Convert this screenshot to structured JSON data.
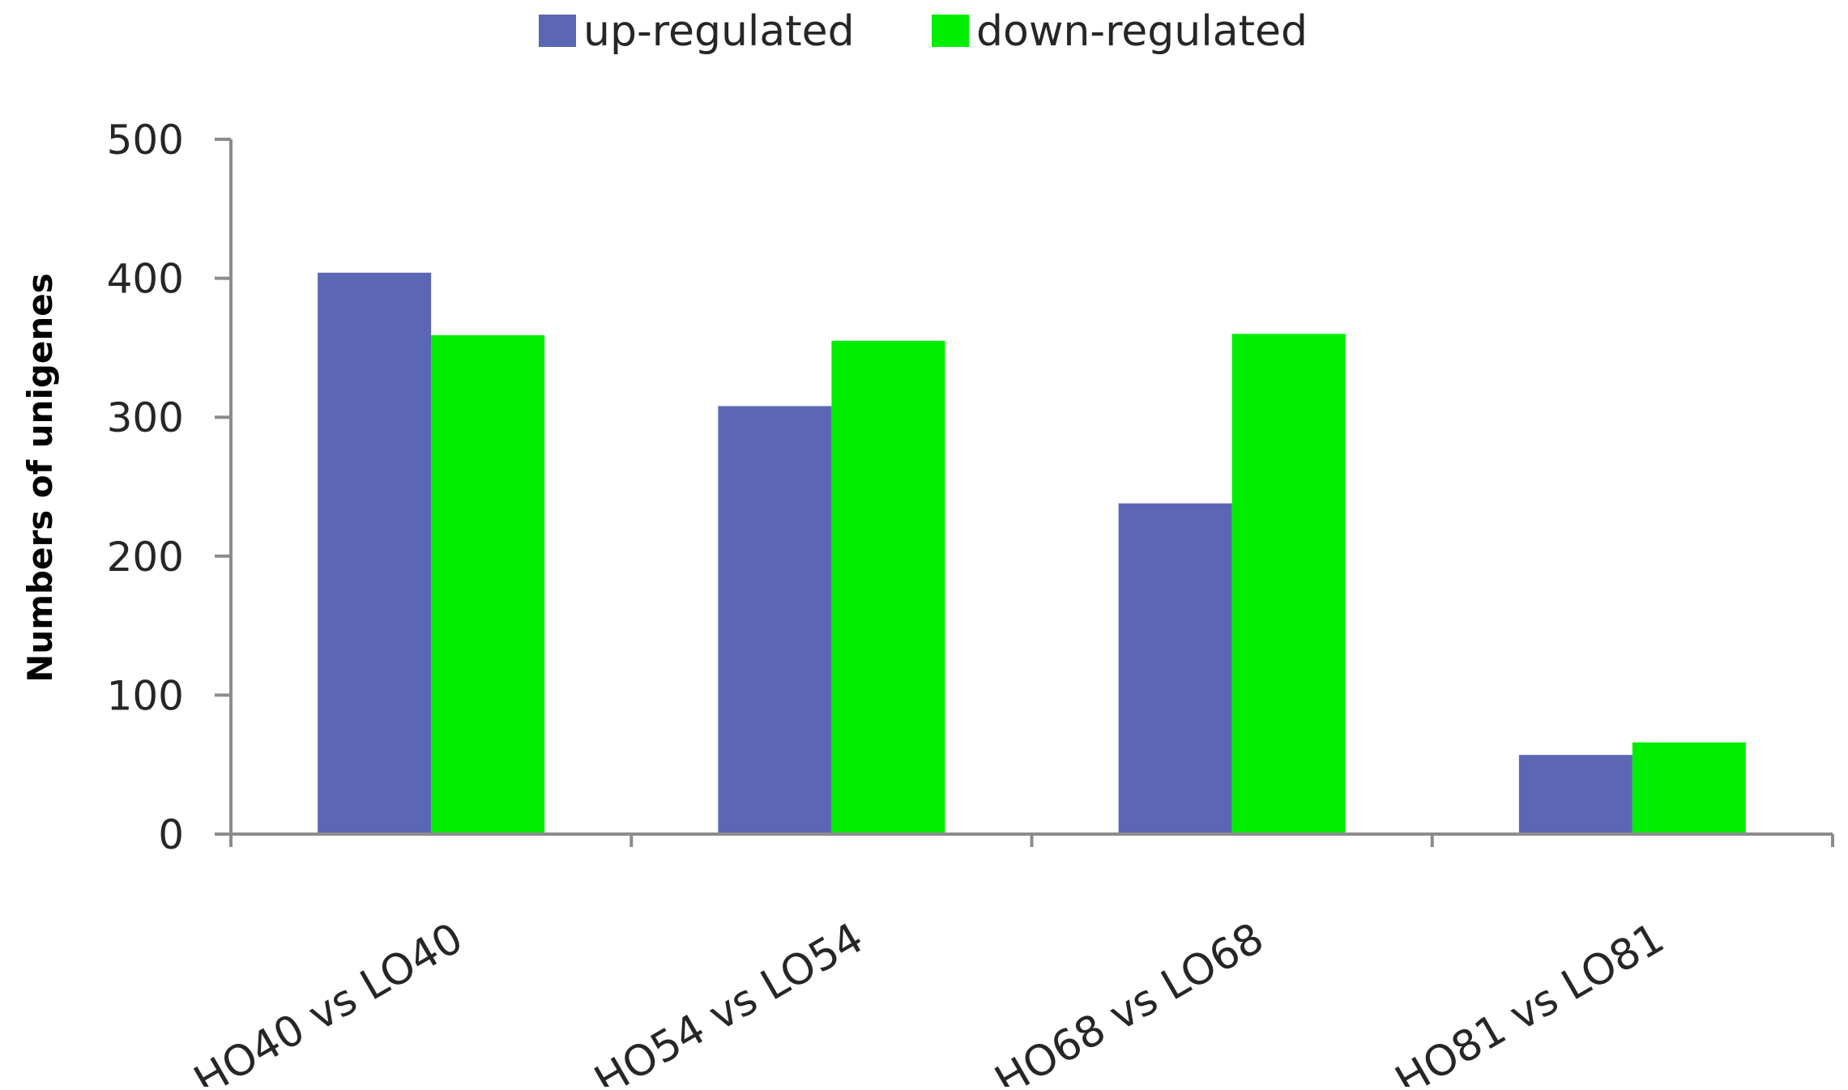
{
  "chart_data": {
    "type": "bar",
    "title": "",
    "xlabel": "",
    "ylabel": "Numbers of unigenes",
    "categories": [
      "HO40 vs LO40",
      "HO54 vs LO54",
      "HO68 vs LO68",
      "HO81 vs LO81"
    ],
    "series": [
      {
        "name": "up-regulated",
        "color": "#5b67b4",
        "values": [
          404,
          308,
          238,
          57
        ]
      },
      {
        "name": "down-regulated",
        "color": "#00ee00",
        "values": [
          359,
          355,
          360,
          66
        ]
      }
    ],
    "ylim": [
      0,
      500
    ],
    "yticks": [
      "0",
      "100",
      "200",
      "300",
      "400",
      "500"
    ],
    "grid": false,
    "legend_position": "top-center"
  }
}
